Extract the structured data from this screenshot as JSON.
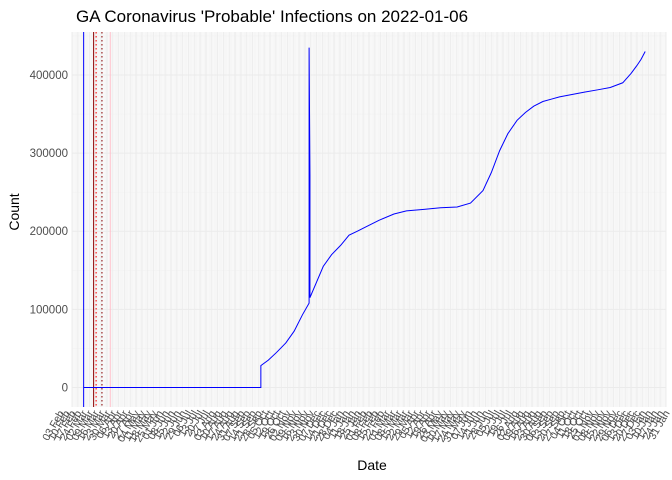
{
  "chart_data": {
    "type": "line",
    "title": "GA Coronavirus 'Probable' Infections on 2022-01-06",
    "xlabel": "Date",
    "ylabel": "Count",
    "ylim": [
      -25000,
      455000
    ],
    "xlim": [
      "2020-02-17",
      "2022-01-31"
    ],
    "grid": true,
    "y_ticks": [
      0,
      100000,
      200000,
      300000,
      400000
    ],
    "y_tick_labels": [
      "0",
      "100000",
      "200000",
      "300000",
      "400000"
    ],
    "x_ticks": [
      "2020-02-03",
      "2020-02-10",
      "2020-02-17",
      "2020-02-24",
      "2020-03-02",
      "2020-03-09",
      "2020-03-16",
      "2020-03-23",
      "2020-03-30",
      "2020-04-06",
      "2020-04-13",
      "2020-04-20",
      "2020-04-27",
      "2020-05-04",
      "2020-05-11",
      "2020-05-18",
      "2020-05-25",
      "2020-06-01",
      "2020-06-08",
      "2020-06-15",
      "2020-06-22",
      "2020-06-29",
      "2020-07-06",
      "2020-07-13",
      "2020-07-20",
      "2020-07-27",
      "2020-08-03",
      "2020-08-10",
      "2020-08-17",
      "2020-08-24",
      "2020-08-31",
      "2020-09-07",
      "2020-09-14",
      "2020-09-21",
      "2020-09-28",
      "2020-10-05",
      "2020-10-12",
      "2020-10-19",
      "2020-10-26",
      "2020-11-02",
      "2020-11-09",
      "2020-11-16",
      "2020-11-23",
      "2020-11-30",
      "2020-12-07",
      "2020-12-14",
      "2020-12-21",
      "2020-12-28",
      "2021-01-04",
      "2021-01-11",
      "2021-01-18",
      "2021-01-25",
      "2021-02-01",
      "2021-02-08",
      "2021-02-15",
      "2021-02-22",
      "2021-03-01",
      "2021-03-08",
      "2021-03-15",
      "2021-03-22",
      "2021-03-29",
      "2021-04-05",
      "2021-04-12",
      "2021-04-19",
      "2021-04-26",
      "2021-05-03",
      "2021-05-10",
      "2021-05-17",
      "2021-05-24",
      "2021-05-31",
      "2021-06-07",
      "2021-06-14",
      "2021-06-21",
      "2021-06-28",
      "2021-07-05",
      "2021-07-12",
      "2021-07-19",
      "2021-07-26",
      "2021-08-02",
      "2021-08-09",
      "2021-08-16",
      "2021-08-23",
      "2021-08-30",
      "2021-09-06",
      "2021-09-13",
      "2021-09-20",
      "2021-09-27",
      "2021-10-04",
      "2021-10-11",
      "2021-10-18",
      "2021-10-25",
      "2021-11-01",
      "2021-11-08",
      "2021-11-15",
      "2021-11-22",
      "2021-11-29",
      "2021-12-06",
      "2021-12-13",
      "2021-12-20",
      "2021-12-27",
      "2022-01-03",
      "2022-01-10",
      "2022-01-17",
      "2022-01-24",
      "2022-01-31"
    ],
    "x_tick_labels": [
      "03 Feb",
      "10 Feb",
      "17 Feb",
      "24 Feb",
      "02 Mar",
      "09 Mar",
      "16 Mar",
      "23 Mar",
      "30 Mar",
      "06 Apr",
      "13 Apr",
      "20 Apr",
      "27 Apr",
      "04 May",
      "11 May",
      "18 May",
      "25 May",
      "01 Jun",
      "08 Jun",
      "15 Jun",
      "22 Jun",
      "29 Jun",
      "06 Jul",
      "13 Jul",
      "20 Jul",
      "27 Jul",
      "03 Aug",
      "10 Aug",
      "17 Aug",
      "24 Aug",
      "31 Aug",
      "07 Sep",
      "14 Sep",
      "21 Sep",
      "28 Sep",
      "05 Oct",
      "12 Oct",
      "19 Oct",
      "26 Oct",
      "02 Nov",
      "09 Nov",
      "16 Nov",
      "23 Nov",
      "30 Nov",
      "07 Dec",
      "14 Dec",
      "21 Dec",
      "28 Dec",
      "04 Jan",
      "11 Jan",
      "18 Jan",
      "25 Jan",
      "01 Feb",
      "08 Feb",
      "15 Feb",
      "22 Feb",
      "01 Mar",
      "08 Mar",
      "15 Mar",
      "22 Mar",
      "29 Mar",
      "05 Apr",
      "12 Apr",
      "19 Apr",
      "26 Apr",
      "03 May",
      "10 May",
      "17 May",
      "24 May",
      "31 May",
      "07 Jun",
      "14 Jun",
      "21 Jun",
      "28 Jun",
      "05 Jul",
      "12 Jul",
      "19 Jul",
      "26 Jul",
      "02 Aug",
      "09 Aug",
      "16 Aug",
      "23 Aug",
      "30 Aug",
      "06 Sep",
      "13 Sep",
      "20 Sep",
      "27 Sep",
      "04 Oct",
      "11 Oct",
      "18 Oct",
      "25 Oct",
      "01 Nov",
      "08 Nov",
      "15 Nov",
      "22 Nov",
      "29 Nov",
      "06 Dec",
      "13 Dec",
      "20 Dec",
      "27 Dec",
      "03 Jan",
      "10 Jan",
      "17 Jan",
      "24 Jan",
      "31 Jan"
    ],
    "vlines": [
      {
        "date": "2020-03-02",
        "color": "#0000ff",
        "style": "solid"
      },
      {
        "date": "2020-03-14",
        "color": "#8b0000",
        "style": "solid"
      },
      {
        "date": "2020-03-17",
        "color": "#ff0000",
        "style": "dotted"
      },
      {
        "date": "2020-03-24",
        "color": "#8b0000",
        "style": "dotted"
      },
      {
        "date": "2020-04-03",
        "color": "#ffc0cb",
        "style": "solid"
      }
    ],
    "series": [
      {
        "color": "#0000ff",
        "x": [
          "2020-03-02",
          "2020-10-01",
          "2020-10-01",
          "2020-10-10",
          "2020-10-20",
          "2020-10-31",
          "2020-11-10",
          "2020-11-20",
          "2020-11-28",
          "2020-11-28",
          "2020-11-29",
          "2020-11-29",
          "2020-12-05",
          "2020-12-15",
          "2020-12-25",
          "2021-01-05",
          "2021-01-15",
          "2021-01-25",
          "2021-02-05",
          "2021-02-20",
          "2021-03-10",
          "2021-03-25",
          "2021-04-15",
          "2021-05-05",
          "2021-05-25",
          "2021-06-10",
          "2021-06-25",
          "2021-07-05",
          "2021-07-15",
          "2021-07-25",
          "2021-08-05",
          "2021-08-15",
          "2021-08-25",
          "2021-09-05",
          "2021-09-15",
          "2021-09-25",
          "2021-10-10",
          "2021-10-25",
          "2021-11-10",
          "2021-11-25",
          "2021-12-10",
          "2021-12-20",
          "2021-12-27",
          "2022-01-01",
          "2022-01-04",
          "2022-01-06"
        ],
        "y": [
          0,
          0,
          28000,
          35000,
          45000,
          57000,
          72000,
          93000,
          108000,
          435000,
          272000,
          115000,
          130000,
          155000,
          170000,
          182000,
          195000,
          200000,
          206000,
          214000,
          222000,
          226000,
          228000,
          230000,
          231000,
          236000,
          252000,
          275000,
          303000,
          325000,
          342000,
          352000,
          360000,
          366000,
          369000,
          372000,
          375000,
          378000,
          381000,
          384000,
          390000,
          402000,
          412000,
          420000,
          426000,
          430000
        ]
      }
    ]
  }
}
